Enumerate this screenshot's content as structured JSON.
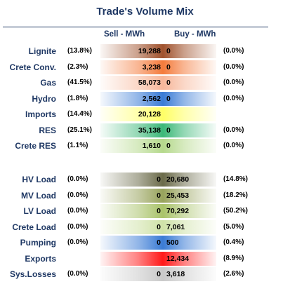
{
  "title": "Trade's Volume Mix",
  "headers": {
    "sell": "Sell - MWh",
    "buy": "Buy - MWh"
  },
  "groups": [
    {
      "rows": [
        {
          "label": "Lignite",
          "sell_pct": "(13.8%)",
          "sell_val": "19,288",
          "buy_val": "0",
          "buy_pct": "(0.0%)",
          "color": "#a0522d"
        },
        {
          "label": "Crete Conv.",
          "sell_pct": "(2.3%)",
          "sell_val": "3,238",
          "buy_val": "0",
          "buy_pct": "(0.0%)",
          "color": "#f47b3c"
        },
        {
          "label": "Gas",
          "sell_pct": "(41.5%)",
          "sell_val": "58,073",
          "buy_val": "0",
          "buy_pct": "(0.0%)",
          "color": "#f7b79a"
        },
        {
          "label": "Hydro",
          "sell_pct": "(1.8%)",
          "sell_val": "2,562",
          "buy_val": "0",
          "buy_pct": "(0.0%)",
          "color": "#3a7bd5"
        },
        {
          "label": "Imports",
          "sell_pct": "(14.4%)",
          "sell_val": "20,128",
          "buy_val": "",
          "buy_pct": "",
          "color": "#ffff66"
        },
        {
          "label": "RES",
          "sell_pct": "(25.1%)",
          "sell_val": "35,138",
          "buy_val": "0",
          "buy_pct": "(0.0%)",
          "color": "#3cb878"
        },
        {
          "label": "Crete RES",
          "sell_pct": "(1.1%)",
          "sell_val": "1,610",
          "buy_val": "0",
          "buy_pct": "(0.0%)",
          "color": "#b5d98c"
        }
      ]
    },
    {
      "rows": [
        {
          "label": "HV Load",
          "sell_pct": "(0.0%)",
          "sell_val": "0",
          "buy_val": "20,680",
          "buy_pct": "(14.8%)",
          "color": "#6b6b4a"
        },
        {
          "label": "MV Load",
          "sell_pct": "(0.0%)",
          "sell_val": "0",
          "buy_val": "25,453",
          "buy_pct": "(18.2%)",
          "color": "#98a35c"
        },
        {
          "label": "LV Load",
          "sell_pct": "(0.0%)",
          "sell_val": "0",
          "buy_val": "70,292",
          "buy_pct": "(50.2%)",
          "color": "#a9c36a"
        },
        {
          "label": "Crete Load",
          "sell_pct": "(0.0%)",
          "sell_val": "0",
          "buy_val": "7,061",
          "buy_pct": "(5.0%)",
          "color": "#cfe2a8"
        },
        {
          "label": "Pumping",
          "sell_pct": "(0.0%)",
          "sell_val": "0",
          "buy_val": "500",
          "buy_pct": "(0.4%)",
          "color": "#3a7bd5"
        },
        {
          "label": "Exports",
          "sell_pct": "",
          "sell_val": "",
          "buy_val": "12,434",
          "buy_pct": "(8.9%)",
          "color": "#ff1a1a"
        },
        {
          "label": "Sys.Losses",
          "sell_pct": "(0.0%)",
          "sell_val": "0",
          "buy_val": "3,618",
          "buy_pct": "(2.6%)",
          "color": "#c9c9c9"
        }
      ]
    }
  ]
}
